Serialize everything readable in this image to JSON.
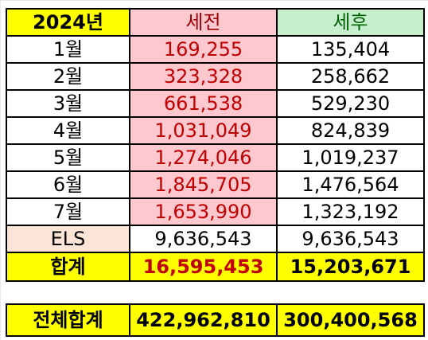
{
  "header": {
    "col1": "2024년",
    "col2": "세전",
    "col3": "세후"
  },
  "rows": [
    {
      "label": "1월",
      "pre": "169,255",
      "post": "135,404"
    },
    {
      "label": "2월",
      "pre": "323,328",
      "post": "258,662"
    },
    {
      "label": "3월",
      "pre": "661,538",
      "post": "529,230"
    },
    {
      "label": "4월",
      "pre": "1,031,049",
      "post": "824,839"
    },
    {
      "label": "5월",
      "pre": "1,274,046",
      "post": "1,019,237"
    },
    {
      "label": "6월",
      "pre": "1,845,705",
      "post": "1,476,564"
    },
    {
      "label": "7월",
      "pre": "1,653,990",
      "post": "1,323,192"
    },
    {
      "label": "ELS",
      "pre": "9,636,543",
      "post": "9,636,543"
    }
  ],
  "sum": {
    "label": "합계",
    "pre": "16,595,453",
    "post": "15,203,671"
  },
  "grand": {
    "label": "전체합계",
    "pre": "422,962,810",
    "post": "300,400,568"
  },
  "colors": {
    "yellow": "#ffff00",
    "pink": "#ffc7ce",
    "green": "#c6efce",
    "peach": "#fce4d6",
    "red_text": "#c00000"
  }
}
